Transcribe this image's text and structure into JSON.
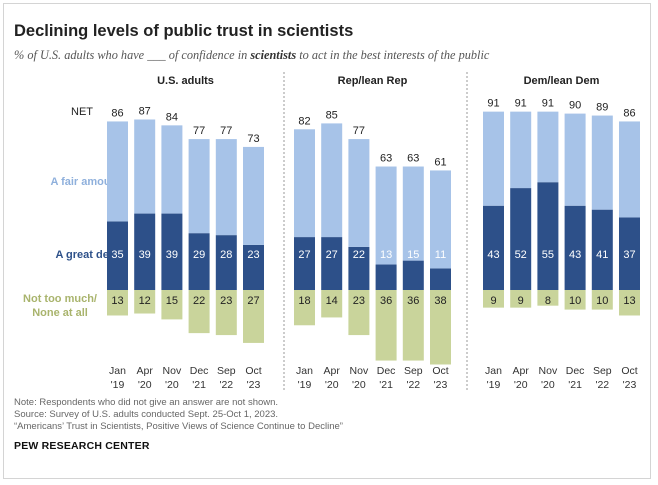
{
  "title": "Declining levels of public trust in scientists",
  "subtitle": {
    "part1": "% of U.S. adults who have ___ of confidence in ",
    "emphasis": "scientists",
    "part2": " to act in the best interests of the public"
  },
  "row_labels": {
    "net": "NET",
    "fair": "A fair amount",
    "great": "A great deal",
    "not_line1": "Not too much/",
    "not_line2": "None at all"
  },
  "colors": {
    "great_deal": "#2d5089",
    "fair_amount": "#a7c3e8",
    "not_too_much": "#c9d49b",
    "fair_label": "#8fb0dc",
    "great_label": "#2d5089",
    "not_label": "#a9b46d"
  },
  "chart_data": {
    "type": "bar",
    "stacked": "diverging",
    "categories": [
      {
        "month": "Jan",
        "year": "'19"
      },
      {
        "month": "Apr",
        "year": "'20"
      },
      {
        "month": "Nov",
        "year": "'20"
      },
      {
        "month": "Dec",
        "year": "'21"
      },
      {
        "month": "Sep",
        "year": "'22"
      },
      {
        "month": "Oct",
        "year": "'23"
      }
    ],
    "panels": [
      {
        "name": "U.S. adults",
        "net": [
          86,
          87,
          84,
          77,
          77,
          73
        ],
        "great_deal": [
          35,
          39,
          39,
          29,
          28,
          23
        ],
        "fair_amount": [
          51,
          48,
          45,
          48,
          49,
          50
        ],
        "not_too_much": [
          13,
          12,
          15,
          22,
          23,
          27
        ]
      },
      {
        "name": "Rep/lean Rep",
        "net": [
          82,
          85,
          77,
          63,
          63,
          61
        ],
        "great_deal": [
          27,
          27,
          22,
          13,
          15,
          11
        ],
        "fair_amount": [
          55,
          58,
          55,
          50,
          48,
          50
        ],
        "not_too_much": [
          18,
          14,
          23,
          36,
          36,
          38
        ]
      },
      {
        "name": "Dem/lean Dem",
        "net": [
          91,
          91,
          91,
          90,
          89,
          86
        ],
        "great_deal": [
          43,
          52,
          55,
          43,
          41,
          37
        ],
        "fair_amount": [
          48,
          39,
          36,
          47,
          48,
          49
        ],
        "not_too_much": [
          9,
          9,
          8,
          10,
          10,
          13
        ]
      }
    ]
  },
  "notes": {
    "note": "Note: Respondents who did not give an answer are not shown.",
    "source": "Source: Survey of U.S. adults conducted Sept. 25-Oct 1, 2023.",
    "report": "“Americans’ Trust in Scientists, Positive Views of Science Continue to Decline”"
  },
  "logo": "PEW RESEARCH CENTER"
}
